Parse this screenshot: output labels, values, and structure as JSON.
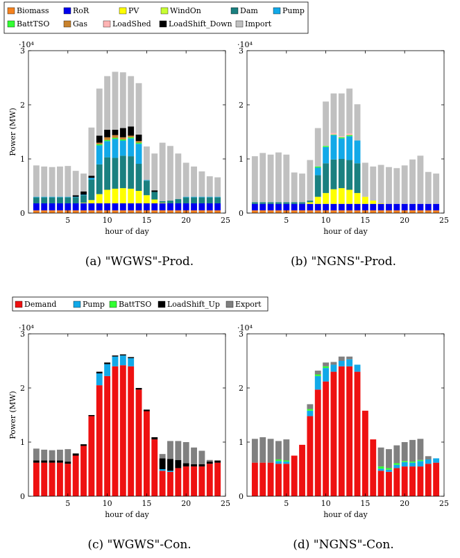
{
  "legend_prod": [
    {
      "name": "Biomass",
      "color": "#f5821f"
    },
    {
      "name": "RoR",
      "color": "#0000ee"
    },
    {
      "name": "PV",
      "color": "#ffff00"
    },
    {
      "name": "WindOn",
      "color": "#c8ff32"
    },
    {
      "name": "Dam",
      "color": "#1a8080"
    },
    {
      "name": "Pump",
      "color": "#12a9e8"
    },
    {
      "name": "BattTSO",
      "color": "#32ff32"
    },
    {
      "name": "Gas",
      "color": "#c8822d"
    },
    {
      "name": "LoadShed",
      "color": "#ffb4b4"
    },
    {
      "name": "LoadShift_Down",
      "color": "#000000"
    },
    {
      "name": "Import",
      "color": "#c0c0c0"
    }
  ],
  "legend_con": [
    {
      "name": "Demand",
      "color": "#ee1111"
    },
    {
      "name": "Pump",
      "color": "#12a9e8"
    },
    {
      "name": "BattTSO",
      "color": "#32ff32"
    },
    {
      "name": "LoadShift_Up",
      "color": "#000000"
    },
    {
      "name": "Export",
      "color": "#808080"
    }
  ],
  "captions": {
    "a": "(a) \"WGWS\"-Prod.",
    "b": "(b) \"NGNS\"-Prod.",
    "c": "(c) \"WGWS\"-Con.",
    "d": "(d) \"NGNS\"-Con."
  },
  "chart_data": [
    {
      "type": "bar",
      "id": "a",
      "xlabel": "hour of day",
      "ylabel": "Power (MW)",
      "scale_label": "·10⁴",
      "xlim": [
        0,
        25
      ],
      "ylim": [
        0,
        3
      ],
      "xticks": [
        5,
        10,
        15,
        20,
        25
      ],
      "yticks": [
        0,
        1,
        2,
        3
      ],
      "categories": [
        1,
        2,
        3,
        4,
        5,
        6,
        7,
        8,
        9,
        10,
        11,
        12,
        13,
        14,
        15,
        16,
        17,
        18,
        19,
        20,
        21,
        22,
        23,
        24
      ],
      "stacked": true,
      "series": [
        {
          "name": "Biomass",
          "values": [
            0.05,
            0.05,
            0.05,
            0.05,
            0.05,
            0.05,
            0.05,
            0.05,
            0.05,
            0.05,
            0.05,
            0.05,
            0.05,
            0.05,
            0.05,
            0.05,
            0.05,
            0.05,
            0.05,
            0.05,
            0.05,
            0.05,
            0.05,
            0.05
          ]
        },
        {
          "name": "RoR",
          "values": [
            0.13,
            0.13,
            0.13,
            0.13,
            0.13,
            0.13,
            0.13,
            0.13,
            0.13,
            0.13,
            0.13,
            0.13,
            0.13,
            0.13,
            0.13,
            0.13,
            0.13,
            0.13,
            0.13,
            0.13,
            0.13,
            0.13,
            0.13,
            0.13
          ]
        },
        {
          "name": "PV",
          "values": [
            0,
            0,
            0,
            0,
            0,
            0,
            0.01,
            0.06,
            0.17,
            0.25,
            0.27,
            0.28,
            0.27,
            0.23,
            0.15,
            0.07,
            0.01,
            0,
            0,
            0,
            0,
            0,
            0,
            0
          ]
        },
        {
          "name": "WindOn",
          "values": [
            0,
            0,
            0,
            0,
            0,
            0,
            0,
            0,
            0,
            0,
            0,
            0,
            0,
            0,
            0,
            0,
            0,
            0,
            0,
            0,
            0,
            0,
            0,
            0
          ]
        },
        {
          "name": "Dam",
          "values": [
            0.11,
            0.11,
            0.11,
            0.11,
            0.11,
            0.11,
            0.14,
            0.38,
            0.55,
            0.6,
            0.57,
            0.6,
            0.6,
            0.5,
            0.27,
            0.14,
            0.03,
            0.05,
            0.08,
            0.11,
            0.11,
            0.11,
            0.11,
            0.11
          ]
        },
        {
          "name": "Pump",
          "values": [
            0.01,
            0.01,
            0.01,
            0.01,
            0.01,
            0.01,
            0.01,
            0.03,
            0.35,
            0.3,
            0.35,
            0.28,
            0.33,
            0.37,
            0.01,
            0,
            0,
            0,
            0,
            0.01,
            0.01,
            0.01,
            0.01,
            0.01
          ]
        },
        {
          "name": "BattTSO",
          "values": [
            0,
            0,
            0,
            0,
            0,
            0,
            0,
            0,
            0.02,
            0.02,
            0.02,
            0.02,
            0.02,
            0.02,
            0,
            0,
            0,
            0,
            0,
            0,
            0,
            0,
            0,
            0
          ]
        },
        {
          "name": "Gas",
          "values": [
            0,
            0,
            0,
            0,
            0,
            0,
            0,
            0,
            0.03,
            0.05,
            0.05,
            0.04,
            0.03,
            0.03,
            0,
            0,
            0,
            0,
            0,
            0,
            0,
            0,
            0,
            0
          ]
        },
        {
          "name": "LoadShed",
          "values": [
            0,
            0,
            0,
            0,
            0,
            0,
            0,
            0,
            0,
            0,
            0,
            0,
            0,
            0,
            0,
            0,
            0,
            0,
            0,
            0,
            0,
            0,
            0,
            0
          ]
        },
        {
          "name": "LoadShift_Down",
          "values": [
            0,
            0,
            0,
            0,
            0,
            0.03,
            0.06,
            0.04,
            0.13,
            0.14,
            0.1,
            0.17,
            0.17,
            0.12,
            0,
            0.03,
            0,
            0,
            0,
            0,
            0,
            0,
            0,
            0
          ]
        },
        {
          "name": "Import",
          "values": [
            0.58,
            0.56,
            0.55,
            0.56,
            0.57,
            0.45,
            0.33,
            0.89,
            0.87,
            0.99,
            1.07,
            1.03,
            0.93,
            0.95,
            0.62,
            0.68,
            1.08,
            1.01,
            0.84,
            0.63,
            0.56,
            0.47,
            0.38,
            0.36
          ]
        }
      ]
    },
    {
      "type": "bar",
      "id": "b",
      "xlabel": "hour of day",
      "ylabel": "",
      "scale_label": "·10⁴",
      "xlim": [
        0,
        25
      ],
      "ylim": [
        0,
        3
      ],
      "xticks": [
        5,
        10,
        15,
        20,
        25
      ],
      "yticks": [
        0,
        1,
        2,
        3
      ],
      "categories": [
        1,
        2,
        3,
        4,
        5,
        6,
        7,
        8,
        9,
        10,
        11,
        12,
        13,
        14,
        15,
        16,
        17,
        18,
        19,
        20,
        21,
        22,
        23,
        24
      ],
      "stacked": true,
      "series": [
        {
          "name": "Biomass",
          "values": [
            0.05,
            0.05,
            0.05,
            0.05,
            0.05,
            0.05,
            0.05,
            0.05,
            0.05,
            0.05,
            0.05,
            0.05,
            0.05,
            0.05,
            0.05,
            0.05,
            0.05,
            0.05,
            0.05,
            0.05,
            0.05,
            0.05,
            0.05,
            0.05
          ]
        },
        {
          "name": "RoR",
          "values": [
            0.12,
            0.12,
            0.12,
            0.12,
            0.12,
            0.12,
            0.12,
            0.12,
            0.12,
            0.12,
            0.12,
            0.12,
            0.12,
            0.12,
            0.12,
            0.12,
            0.12,
            0.12,
            0.12,
            0.12,
            0.12,
            0.12,
            0.12,
            0.12
          ]
        },
        {
          "name": "PV",
          "values": [
            0,
            0,
            0,
            0,
            0,
            0,
            0,
            0.03,
            0.13,
            0.2,
            0.27,
            0.29,
            0.26,
            0.2,
            0.13,
            0.06,
            0.01,
            0,
            0,
            0,
            0,
            0,
            0,
            0
          ]
        },
        {
          "name": "WindOn",
          "values": [
            0,
            0,
            0,
            0,
            0,
            0,
            0,
            0,
            0,
            0,
            0,
            0,
            0,
            0,
            0,
            0,
            0,
            0,
            0,
            0,
            0,
            0,
            0,
            0
          ]
        },
        {
          "name": "Dam",
          "values": [
            0.03,
            0.03,
            0.03,
            0.03,
            0.03,
            0.03,
            0.03,
            0.03,
            0.4,
            0.55,
            0.55,
            0.54,
            0.55,
            0.55,
            0,
            0,
            0,
            0,
            0,
            0,
            0,
            0,
            0,
            0
          ]
        },
        {
          "name": "Pump",
          "values": [
            0,
            0,
            0,
            0,
            0,
            0,
            0,
            0,
            0.14,
            0.3,
            0.45,
            0.38,
            0.44,
            0.42,
            0,
            0,
            0,
            0,
            0,
            0,
            0,
            0,
            0,
            0
          ]
        },
        {
          "name": "BattTSO",
          "values": [
            0,
            0,
            0,
            0,
            0,
            0,
            0,
            0,
            0.02,
            0.02,
            0.01,
            0.02,
            0.02,
            0,
            0,
            0,
            0,
            0,
            0,
            0,
            0,
            0,
            0,
            0
          ]
        },
        {
          "name": "Gas",
          "values": [
            0,
            0,
            0,
            0,
            0,
            0,
            0,
            0,
            0,
            0,
            0,
            0,
            0,
            0,
            0,
            0,
            0,
            0,
            0,
            0,
            0,
            0,
            0,
            0
          ]
        },
        {
          "name": "LoadShed",
          "values": [
            0,
            0,
            0,
            0,
            0,
            0,
            0,
            0,
            0,
            0,
            0.03,
            0.02,
            0.03,
            0,
            0,
            0,
            0,
            0,
            0,
            0,
            0,
            0,
            0,
            0
          ]
        },
        {
          "name": "LoadShift_Down",
          "values": [
            0,
            0,
            0,
            0,
            0,
            0,
            0,
            0,
            0,
            0,
            0,
            0,
            0,
            0,
            0,
            0,
            0,
            0,
            0,
            0,
            0,
            0,
            0,
            0
          ]
        },
        {
          "name": "Import",
          "values": [
            0.85,
            0.91,
            0.88,
            0.92,
            0.88,
            0.55,
            0.53,
            0.75,
            0.71,
            0.82,
            0.73,
            0.79,
            0.83,
            0.67,
            0.63,
            0.63,
            0.71,
            0.68,
            0.66,
            0.71,
            0.82,
            0.89,
            0.59,
            0.56
          ]
        }
      ]
    },
    {
      "type": "bar",
      "id": "c",
      "xlabel": "hour of day",
      "ylabel": "Power (MW)",
      "scale_label": "·10⁴",
      "xlim": [
        0,
        25
      ],
      "ylim": [
        0,
        3
      ],
      "xticks": [
        5,
        10,
        15,
        20,
        25
      ],
      "yticks": [
        0,
        1,
        2,
        3
      ],
      "categories": [
        1,
        2,
        3,
        4,
        5,
        6,
        7,
        8,
        9,
        10,
        11,
        12,
        13,
        14,
        15,
        16,
        17,
        18,
        19,
        20,
        21,
        22,
        23,
        24
      ],
      "stacked": true,
      "series": [
        {
          "name": "Demand",
          "values": [
            0.62,
            0.62,
            0.62,
            0.62,
            0.6,
            0.75,
            0.93,
            1.48,
            2.05,
            2.22,
            2.4,
            2.42,
            2.4,
            1.97,
            1.57,
            1.05,
            0.47,
            0.45,
            0.52,
            0.55,
            0.55,
            0.55,
            0.6,
            0.62
          ]
        },
        {
          "name": "Pump",
          "values": [
            0,
            0,
            0,
            0,
            0,
            0,
            0,
            0,
            0.22,
            0.22,
            0.18,
            0.18,
            0.15,
            0,
            0,
            0,
            0.03,
            0.02,
            0,
            0,
            0,
            0,
            0,
            0
          ]
        },
        {
          "name": "BattTSO",
          "values": [
            0,
            0,
            0,
            0,
            0,
            0,
            0,
            0,
            0,
            0,
            0,
            0,
            0,
            0,
            0,
            0,
            0,
            0,
            0,
            0,
            0,
            0,
            0,
            0
          ]
        },
        {
          "name": "LoadShift_Up",
          "values": [
            0.04,
            0.04,
            0.04,
            0.04,
            0.04,
            0.04,
            0.03,
            0.02,
            0.03,
            0.03,
            0.02,
            0.02,
            0.02,
            0.03,
            0.03,
            0.04,
            0.2,
            0.22,
            0.15,
            0.06,
            0.04,
            0.04,
            0.04,
            0.04
          ]
        },
        {
          "name": "Export",
          "values": [
            0.22,
            0.2,
            0.19,
            0.2,
            0.23,
            0,
            0,
            0,
            0,
            0,
            0,
            0,
            0,
            0,
            0,
            0,
            0.08,
            0.33,
            0.35,
            0.39,
            0.31,
            0.25,
            0.03,
            0
          ]
        }
      ]
    },
    {
      "type": "bar",
      "id": "d",
      "xlabel": "hour of day",
      "ylabel": "",
      "scale_label": "·10⁴",
      "xlim": [
        0,
        25
      ],
      "ylim": [
        0,
        3
      ],
      "xticks": [
        5,
        10,
        15,
        20,
        25
      ],
      "yticks": [
        0,
        1,
        2,
        3
      ],
      "categories": [
        1,
        2,
        3,
        4,
        5,
        6,
        7,
        8,
        9,
        10,
        11,
        12,
        13,
        14,
        15,
        16,
        17,
        18,
        19,
        20,
        21,
        22,
        23,
        24
      ],
      "stacked": true,
      "series": [
        {
          "name": "Demand",
          "values": [
            0.62,
            0.62,
            0.62,
            0.6,
            0.6,
            0.75,
            0.95,
            1.48,
            1.97,
            2.12,
            2.3,
            2.4,
            2.4,
            2.3,
            1.58,
            1.05,
            0.47,
            0.45,
            0.52,
            0.55,
            0.55,
            0.55,
            0.6,
            0.62
          ]
        },
        {
          "name": "Pump",
          "values": [
            0,
            0,
            0,
            0.05,
            0.04,
            0,
            0,
            0.1,
            0.25,
            0.25,
            0.13,
            0.1,
            0.13,
            0.13,
            0,
            0,
            0.04,
            0.04,
            0.06,
            0.08,
            0.07,
            0.1,
            0.08,
            0.08
          ]
        },
        {
          "name": "BattTSO",
          "values": [
            0,
            0,
            0,
            0.03,
            0.02,
            0,
            0,
            0.03,
            0.03,
            0.03,
            0,
            0,
            0,
            0,
            0,
            0,
            0.04,
            0.03,
            0.03,
            0.02,
            0.02,
            0.02,
            0,
            0
          ]
        },
        {
          "name": "LoadShift_Up",
          "values": [
            0,
            0,
            0,
            0,
            0,
            0,
            0,
            0,
            0,
            0,
            0,
            0,
            0,
            0,
            0,
            0,
            0,
            0,
            0,
            0,
            0,
            0,
            0,
            0
          ]
        },
        {
          "name": "Export",
          "values": [
            0.44,
            0.47,
            0.44,
            0.34,
            0.39,
            0,
            0,
            0.09,
            0.07,
            0.07,
            0.05,
            0.08,
            0.05,
            0,
            0,
            0,
            0.35,
            0.35,
            0.33,
            0.35,
            0.4,
            0.39,
            0.06,
            0
          ]
        }
      ]
    }
  ]
}
